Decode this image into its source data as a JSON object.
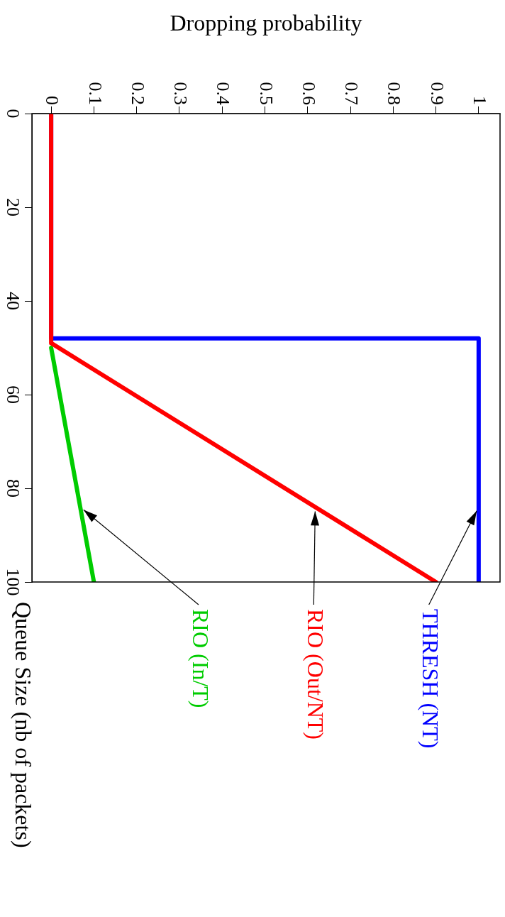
{
  "chart_data": {
    "type": "line",
    "xlabel": "Dropping probability",
    "ylabel": "Queue Size (nb of packets)",
    "xlim": [
      -0.045,
      1.05
    ],
    "xticks": [
      0,
      0.1,
      0.2,
      0.3,
      0.4,
      0.5,
      0.6,
      0.7,
      0.8,
      0.9,
      1
    ],
    "ylim": [
      100,
      0
    ],
    "yticks": [
      0,
      20,
      40,
      60,
      80,
      100
    ],
    "grid": false,
    "legend": false,
    "marker": "none",
    "line_style": "solid",
    "series": [
      {
        "name": "RIO (In/T)",
        "color": "#00cc00",
        "x": [
          0,
          0.1
        ],
        "values": [
          50,
          100
        ]
      },
      {
        "name": "THRESH (NT)",
        "color": "#0000ff",
        "x": [
          0,
          0,
          1,
          1
        ],
        "values": [
          0,
          48,
          48,
          100
        ]
      },
      {
        "name": "RIO (Out/NT)",
        "color": "#ff0000",
        "x": [
          0,
          0,
          0.9
        ],
        "values": [
          0,
          49,
          100
        ]
      }
    ]
  }
}
